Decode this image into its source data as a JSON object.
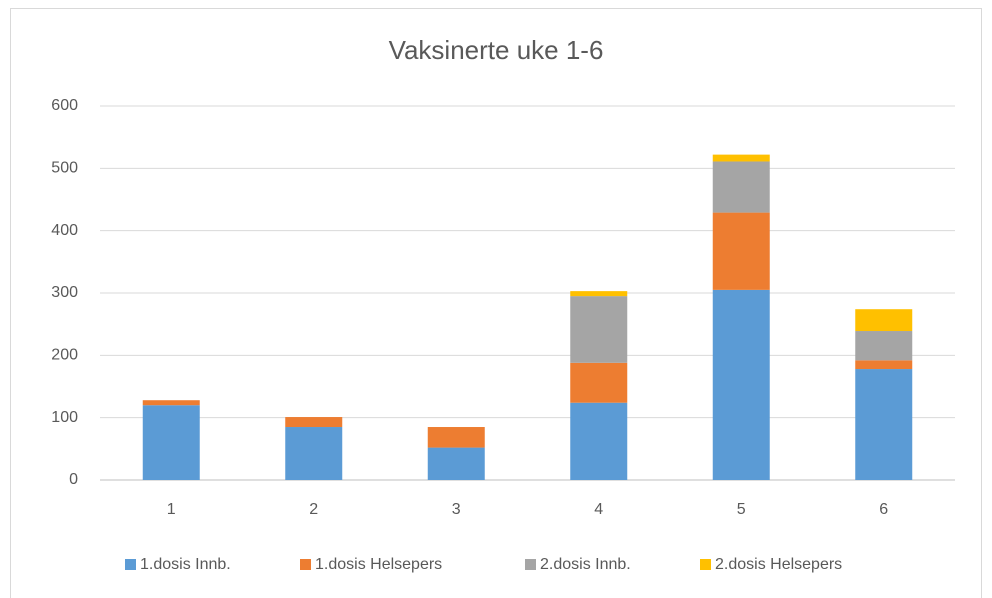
{
  "chart_data": {
    "type": "stacked_bar",
    "title": "Vaksinerte uke 1-6",
    "categories": [
      "1",
      "2",
      "3",
      "4",
      "5",
      "6"
    ],
    "series": [
      {
        "name": "1.dosis Innb.",
        "color": "#5b9bd5",
        "values": [
          120,
          85,
          52,
          124,
          305,
          178
        ]
      },
      {
        "name": "1.dosis Helsepers",
        "color": "#ed7d31",
        "values": [
          8,
          16,
          33,
          64,
          124,
          14
        ]
      },
      {
        "name": "2.dosis Innb.",
        "color": "#a5a5a5",
        "values": [
          0,
          0,
          0,
          107,
          82,
          47
        ]
      },
      {
        "name": "2.dosis Helsepers",
        "color": "#ffc000",
        "values": [
          0,
          0,
          0,
          8,
          11,
          35
        ]
      }
    ],
    "ylim": [
      0,
      600
    ],
    "yticks": [
      0,
      100,
      200,
      300,
      400,
      500,
      600
    ],
    "grid": true,
    "legend": "bottom"
  }
}
